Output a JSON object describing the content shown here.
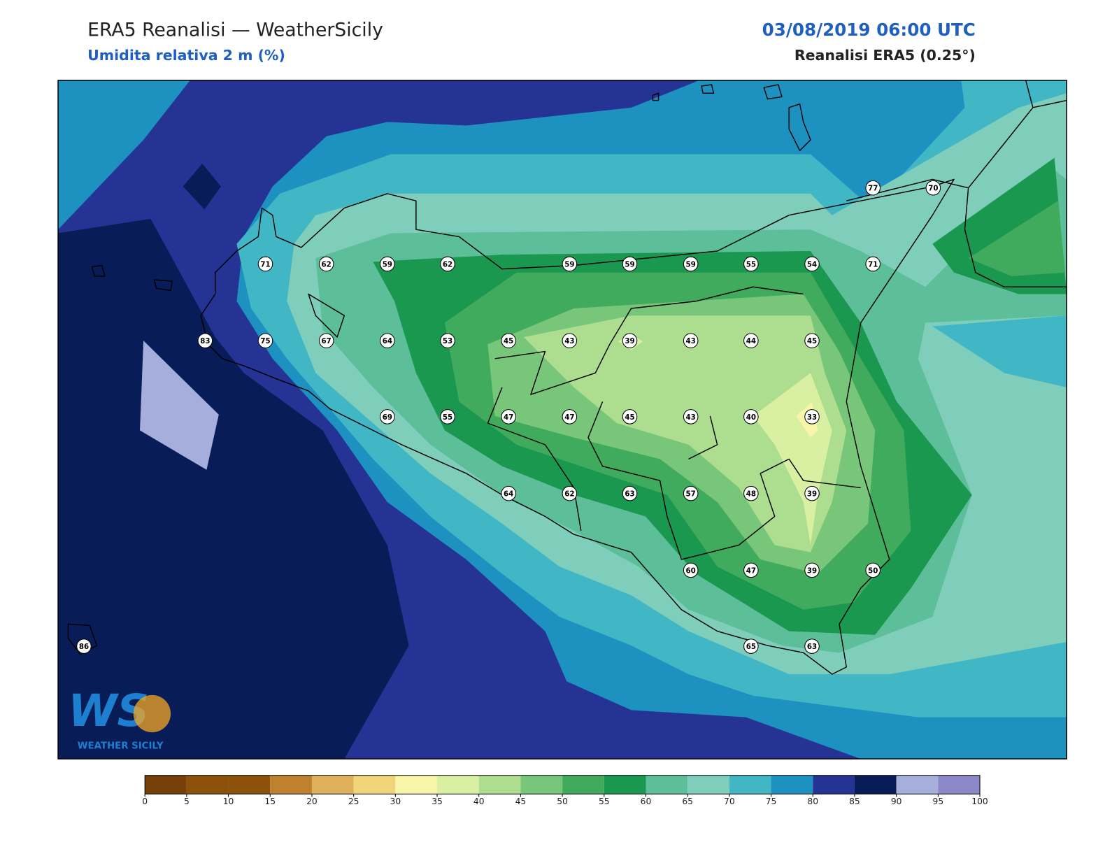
{
  "header": {
    "title": "ERA5 Reanalisi — WeatherSicily",
    "subtitle": "Umidita relativa 2 m (%)",
    "datetime": "03/08/2019 06:00 UTC",
    "source": "Reanalisi ERA5 (0.25°)"
  },
  "stations": [
    77,
    70,
    71,
    62,
    59,
    62,
    59,
    59,
    59,
    55,
    54,
    71,
    83,
    75,
    67,
    64,
    53,
    45,
    43,
    39,
    43,
    44,
    45,
    69,
    55,
    47,
    47,
    45,
    43,
    40,
    33,
    64,
    62,
    63,
    57,
    48,
    39,
    60,
    47,
    39,
    50,
    86,
    65,
    63
  ],
  "colorbar": {
    "ticks": [
      0,
      5,
      10,
      15,
      20,
      25,
      30,
      35,
      40,
      45,
      50,
      55,
      60,
      65,
      70,
      75,
      80,
      85,
      90,
      95,
      100
    ],
    "colors": [
      "#774008",
      "#8c510a",
      "#8c510a",
      "#bf812d",
      "#dfb05a",
      "#f0d57a",
      "#f6f5a8",
      "#d9f0a3",
      "#addd8e",
      "#78c679",
      "#41ab5d",
      "#1a9850",
      "#5cbf9a",
      "#7fcdbb",
      "#41b6c4",
      "#1d91c0",
      "#253494",
      "#081d58",
      "#a6aedc",
      "#8c88c8"
    ]
  },
  "logo": {
    "mark": "WS",
    "text": "WEATHER SICILY"
  }
}
